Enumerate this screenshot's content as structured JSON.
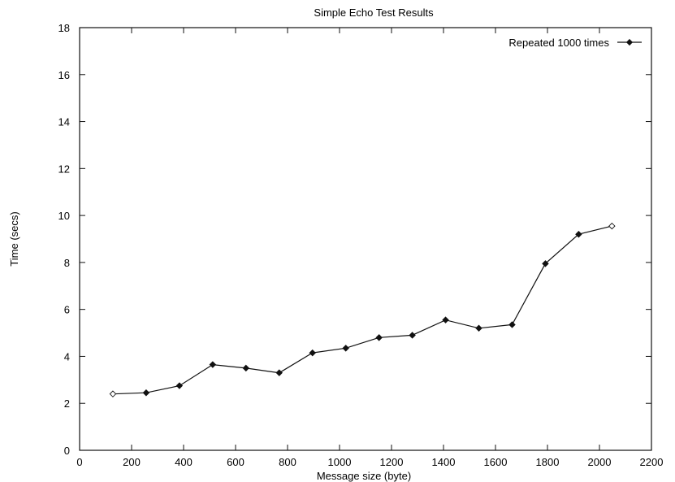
{
  "chart_data": {
    "type": "line",
    "title": "Simple Echo Test Results",
    "xlabel": "Message size (byte)",
    "ylabel": "Time (secs)",
    "xlim": [
      0,
      2200
    ],
    "ylim": [
      0,
      18
    ],
    "x_ticks": [
      "0",
      "200",
      "400",
      "600",
      "800",
      "1000",
      "1200",
      "1400",
      "1600",
      "1800",
      "2000",
      "2200"
    ],
    "y_ticks": [
      "0",
      "2",
      "4",
      "6",
      "8",
      "10",
      "12",
      "14",
      "16",
      "18"
    ],
    "grid": false,
    "legend_position": "top-right",
    "series": [
      {
        "name": "Repeated 1000 times",
        "color": "#111111",
        "marker": "diamond",
        "x": [
          128,
          256,
          384,
          512,
          640,
          768,
          896,
          1024,
          1152,
          1280,
          1408,
          1536,
          1664,
          1792,
          1920,
          2048
        ],
        "values": [
          2.4,
          2.45,
          2.75,
          3.65,
          3.5,
          3.3,
          4.15,
          4.35,
          4.8,
          4.9,
          5.55,
          5.2,
          5.35,
          7.95,
          9.2,
          9.55
        ]
      }
    ]
  }
}
